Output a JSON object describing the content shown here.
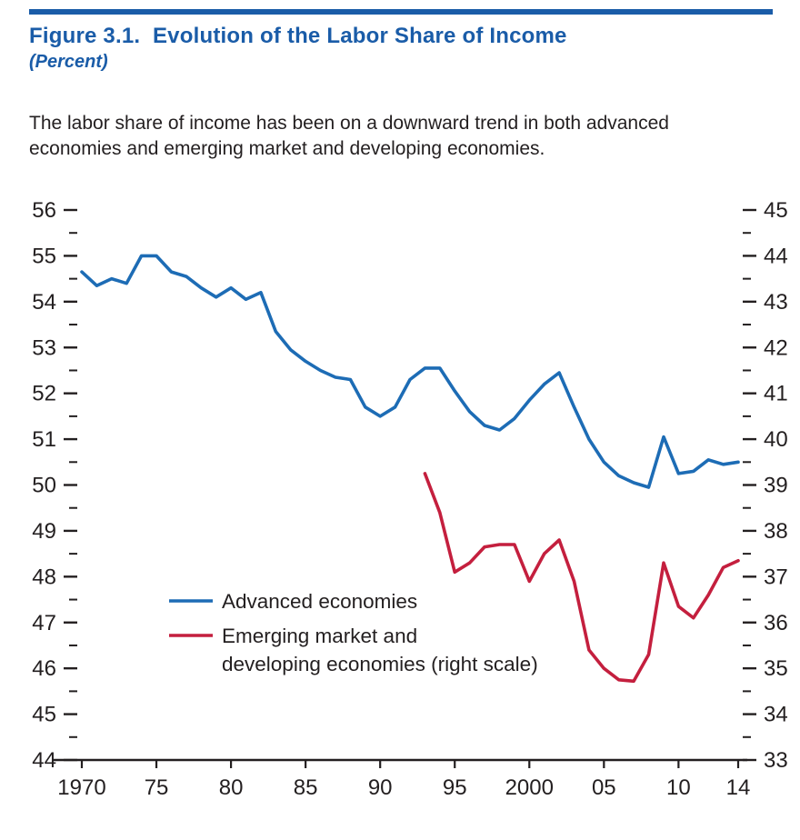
{
  "header": {
    "title": "Figure 3.1.  Evolution of the Labor Share of Income",
    "subtitle": "(Percent)",
    "caption": "The labor share of income has been on a downward trend in both advanced economies and emerging market and developing economies."
  },
  "colors": {
    "accent_blue": "#1a5ca8",
    "advanced_line": "#1d6cb5",
    "emerging_line": "#c41f3e",
    "text": "#231f20",
    "axis": "#231f20"
  },
  "chart_data": {
    "type": "line",
    "title": "Evolution of the Labor Share of Income",
    "units": "Percent",
    "x_range": [
      1970,
      2014
    ],
    "x_ticks": [
      {
        "year": 1970,
        "label": "1970"
      },
      {
        "year": 1975,
        "label": "75"
      },
      {
        "year": 1980,
        "label": "80"
      },
      {
        "year": 1985,
        "label": "85"
      },
      {
        "year": 1990,
        "label": "90"
      },
      {
        "year": 1995,
        "label": "95"
      },
      {
        "year": 2000,
        "label": "2000"
      },
      {
        "year": 2005,
        "label": "05"
      },
      {
        "year": 2010,
        "label": "10"
      },
      {
        "year": 2014,
        "label": "14"
      }
    ],
    "left_axis": {
      "min": 44,
      "max": 56,
      "major_step": 1,
      "minor_step": 0.5
    },
    "right_axis": {
      "min": 33,
      "max": 45,
      "major_step": 1,
      "minor_step": 0.5
    },
    "series": [
      {
        "name": "Advanced economies",
        "axis": "left",
        "color_key": "advanced_line",
        "start_year": 1970,
        "values": [
          54.65,
          54.35,
          54.5,
          54.4,
          55.0,
          55.0,
          54.65,
          54.55,
          54.3,
          54.1,
          54.3,
          54.05,
          54.2,
          53.35,
          52.95,
          52.7,
          52.5,
          52.35,
          52.3,
          51.7,
          51.5,
          51.7,
          52.3,
          52.55,
          52.55,
          52.05,
          51.6,
          51.3,
          51.2,
          51.45,
          51.85,
          52.2,
          52.45,
          51.7,
          51.0,
          50.5,
          50.2,
          50.05,
          49.95,
          51.05,
          50.25,
          50.3,
          50.55,
          50.45,
          50.5
        ]
      },
      {
        "name": "Emerging market and developing economies (right scale)",
        "axis": "right",
        "color_key": "emerging_line",
        "start_year": 1993,
        "values": [
          39.25,
          38.4,
          37.1,
          37.3,
          37.65,
          37.7,
          37.7,
          36.9,
          37.5,
          37.8,
          36.9,
          35.4,
          35.0,
          34.75,
          34.72,
          35.3,
          37.3,
          36.35,
          36.1,
          36.6,
          37.2,
          37.35
        ]
      }
    ],
    "legend": [
      {
        "series": 0,
        "lines": [
          "Advanced economies"
        ]
      },
      {
        "series": 1,
        "lines": [
          "Emerging market and",
          "developing economies (right scale)"
        ]
      }
    ]
  }
}
